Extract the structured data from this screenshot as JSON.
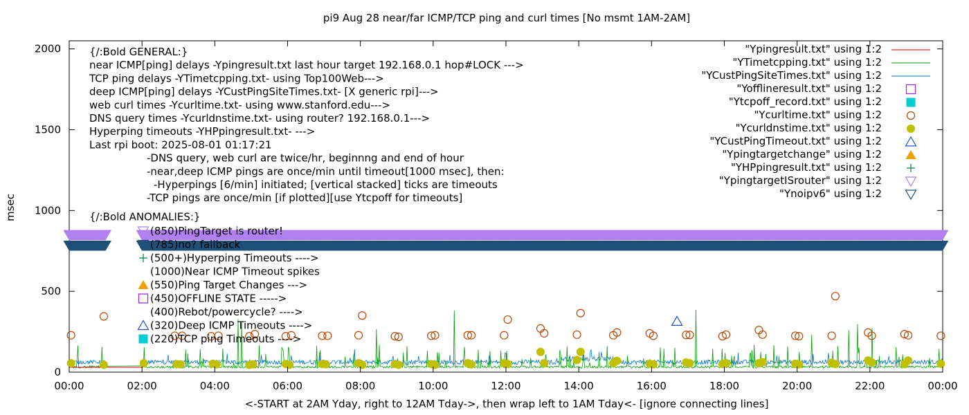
{
  "chart_data": {
    "type": "scatter",
    "title": "pi9 Aug 28  near/far ICMP/TCP ping and curl times [No msmt 1AM-2AM]",
    "xlabel": "<-START at 2AM Yday, right to 12AM Tday->, then wrap left to 1AM Tday<- [ignore connecting lines]",
    "ylabel": "msec",
    "xlim": [
      0,
      24
    ],
    "ylim": [
      0,
      2050
    ],
    "x_ticks": [
      "00:00",
      "02:00",
      "04:00",
      "06:00",
      "08:00",
      "10:00",
      "12:00",
      "14:00",
      "16:00",
      "18:00",
      "20:00",
      "22:00",
      "00:00"
    ],
    "y_ticks": [
      0,
      500,
      1000,
      1500,
      2000
    ],
    "legend_position": "top-right",
    "legend": [
      {
        "name": "\"Ypingresult.txt\" using 1:2",
        "style": "line",
        "color": "#cc0000"
      },
      {
        "name": "\"YTimetcpping.txt\" using 1:2",
        "style": "line",
        "color": "#009900"
      },
      {
        "name": "\"YCustPingSiteTimes.txt\" using 1:2",
        "style": "line",
        "color": "#0077cc"
      },
      {
        "name": "\"Yofflineresult.txt\" using 1:2",
        "style": "open-square",
        "color": "#a020f0"
      },
      {
        "name": "\"Ytcpoff_record.txt\" using 1:2",
        "style": "filled-square",
        "color": "#00ced1"
      },
      {
        "name": "\"Ycurltime.txt\" using 1:2",
        "style": "open-circle",
        "color": "#b84400"
      },
      {
        "name": "\"Ycurldnstime.txt\" using 1:2",
        "style": "filled-circle",
        "color": "#c0c000"
      },
      {
        "name": "\"YCustPingTimeout.txt\" using 1:2",
        "style": "open-triangle",
        "color": "#1e50c8"
      },
      {
        "name": "\"Ypingtargetchange\" using 1:2",
        "style": "filled-triangle",
        "color": "#f0a000"
      },
      {
        "name": "\"YHPpingresult.txt\" using 1:2",
        "style": "plus",
        "color": "#008040"
      },
      {
        "name": "\"YpingtargetISrouter\" using 1:2",
        "style": "open-down-triangle",
        "color": "#b080f0"
      },
      {
        "name": "\"Ynoipv6\" using 1:2",
        "style": "open-down-triangle",
        "color": "#1e5078"
      }
    ],
    "notes": [
      "{/:Bold GENERAL:}",
      "near ICMP[ping] delays -Ypingresult.txt last hour target 192.168.0.1 hop#LOCK --->",
      "TCP ping delays -YTimetcpping.txt- using Top100Web--->",
      "deep ICMP[ping] delays -YCustPingSiteTimes.txt- [X generic rpi]--->",
      "web curl times -Ycurltime.txt- using www.stanford.edu--->",
      "DNS query times -Ycurldnstime.txt- using router? 192.168.0.1--->",
      "Hyperping timeouts -YHPpingresult.txt- --->",
      "Last rpi boot: 2025-08-01 01:17:21",
      "-DNS query, web curl are twice/hr, beginnng and end of hour",
      "-near,deep ICMP pings are once/min until timeout[1000 msec], then:",
      "-Hyperpings [6/min] initiated; [vertical stacked] ticks are timeouts",
      "-TCP pings are once/min [if plotted][use Ytcpoff for timeouts]",
      "{/:Bold ANOMALIES:}"
    ],
    "anomalies": [
      {
        "marker": "open-down-triangle",
        "color": "#b080f0",
        "text": "(850)PingTarget is router!"
      },
      {
        "marker": "open-down-triangle",
        "color": "#1e5078",
        "text": "(785)no? fallback"
      },
      {
        "marker": "plus",
        "color": "#008040",
        "text": "(500+)Hyperping Timeouts ---->"
      },
      {
        "marker": "none",
        "color": "#000000",
        "text": "(1000)Near ICMP Timeout spikes"
      },
      {
        "marker": "filled-triangle",
        "color": "#f0a000",
        "text": "(550)Ping Target Changes --->"
      },
      {
        "marker": "open-square",
        "color": "#a020f0",
        "text": "(450)OFFLINE STATE ----->"
      },
      {
        "marker": "none",
        "color": "#000000",
        "text": "(400)Rebot/powercycle? ---->"
      },
      {
        "marker": "open-triangle",
        "color": "#1e50c8",
        "text": "(320)Deep ICMP Timeouts ---->"
      },
      {
        "marker": "filled-square",
        "color": "#00ced1",
        "text": "(220)TCP ping Timeouts ---->"
      }
    ],
    "series": [
      {
        "name": "\"YpingtargetISrouter\" using 1:2",
        "marker": "open-down-triangle",
        "color": "#b080f0",
        "y": 850,
        "x_ranges": [
          [
            0,
            1.0
          ],
          [
            2.0,
            24
          ]
        ]
      },
      {
        "name": "\"Ynoipv6\" using 1:2",
        "marker": "open-down-triangle",
        "color": "#1e5078",
        "y": 785,
        "x_ranges": [
          [
            0,
            1.0
          ],
          [
            2.0,
            24
          ]
        ]
      },
      {
        "name": "\"Ycurltime.txt\" using 1:2",
        "marker": "open-circle",
        "color": "#b84400",
        "points": [
          [
            0.05,
            228
          ],
          [
            0.95,
            345
          ],
          [
            2.9,
            225
          ],
          [
            3.1,
            225
          ],
          [
            3.9,
            222
          ],
          [
            4.1,
            225
          ],
          [
            4.95,
            222
          ],
          [
            5.1,
            235
          ],
          [
            5.95,
            222
          ],
          [
            6.1,
            228
          ],
          [
            6.95,
            225
          ],
          [
            7.1,
            225
          ],
          [
            7.95,
            228
          ],
          [
            8.05,
            350
          ],
          [
            8.95,
            222
          ],
          [
            9.05,
            218
          ],
          [
            9.95,
            225
          ],
          [
            10.05,
            228
          ],
          [
            10.95,
            228
          ],
          [
            11.05,
            228
          ],
          [
            11.95,
            228
          ],
          [
            12.05,
            325
          ],
          [
            12.95,
            270
          ],
          [
            13.05,
            240
          ],
          [
            13.95,
            232
          ],
          [
            14.05,
            365
          ],
          [
            14.95,
            228
          ],
          [
            15.05,
            245
          ],
          [
            15.95,
            240
          ],
          [
            16.05,
            225
          ],
          [
            16.95,
            230
          ],
          [
            17.05,
            230
          ],
          [
            17.95,
            222
          ],
          [
            18.05,
            232
          ],
          [
            18.95,
            260
          ],
          [
            19.05,
            232
          ],
          [
            19.95,
            225
          ],
          [
            20.05,
            222
          ],
          [
            20.95,
            225
          ],
          [
            21.05,
            470
          ],
          [
            21.95,
            245
          ],
          [
            22.05,
            225
          ],
          [
            22.95,
            235
          ],
          [
            23.05,
            228
          ],
          [
            23.95,
            225
          ]
        ]
      },
      {
        "name": "\"Ycurldnstime.txt\" using 1:2",
        "marker": "filled-circle",
        "color": "#c0c000",
        "points": [
          [
            0.05,
            55
          ],
          [
            0.95,
            45
          ],
          [
            2.05,
            55
          ],
          [
            2.95,
            50
          ],
          [
            3.05,
            48
          ],
          [
            3.95,
            52
          ],
          [
            4.05,
            48
          ],
          [
            4.95,
            45
          ],
          [
            5.05,
            48
          ],
          [
            5.95,
            50
          ],
          [
            6.05,
            45
          ],
          [
            6.95,
            50
          ],
          [
            7.05,
            48
          ],
          [
            7.95,
            55
          ],
          [
            8.05,
            45
          ],
          [
            8.95,
            50
          ],
          [
            9.05,
            45
          ],
          [
            9.95,
            50
          ],
          [
            10.05,
            45
          ],
          [
            10.95,
            55
          ],
          [
            11.05,
            48
          ],
          [
            11.95,
            55
          ],
          [
            12.05,
            50
          ],
          [
            12.95,
            125
          ],
          [
            13.05,
            55
          ],
          [
            13.95,
            75
          ],
          [
            14.05,
            125
          ],
          [
            14.95,
            55
          ],
          [
            15.05,
            70
          ],
          [
            15.95,
            52
          ],
          [
            16.05,
            48
          ],
          [
            16.95,
            60
          ],
          [
            17.05,
            55
          ],
          [
            17.95,
            50
          ],
          [
            18.05,
            55
          ],
          [
            18.95,
            55
          ],
          [
            19.05,
            62
          ],
          [
            19.95,
            52
          ],
          [
            20.05,
            48
          ],
          [
            20.95,
            58
          ],
          [
            21.05,
            50
          ],
          [
            21.95,
            72
          ],
          [
            22.05,
            60
          ],
          [
            22.95,
            50
          ],
          [
            23.05,
            72
          ],
          [
            23.95,
            52
          ]
        ]
      },
      {
        "name": "\"YCustPingTimeout.txt\" using 1:2",
        "marker": "open-triangle",
        "color": "#1e50c8",
        "points": [
          [
            16.7,
            315
          ]
        ]
      },
      {
        "name": "\"Ytcpoff_record.txt\" using 1:2",
        "marker": "filled-square",
        "color": "#00ced1",
        "points": []
      }
    ]
  }
}
